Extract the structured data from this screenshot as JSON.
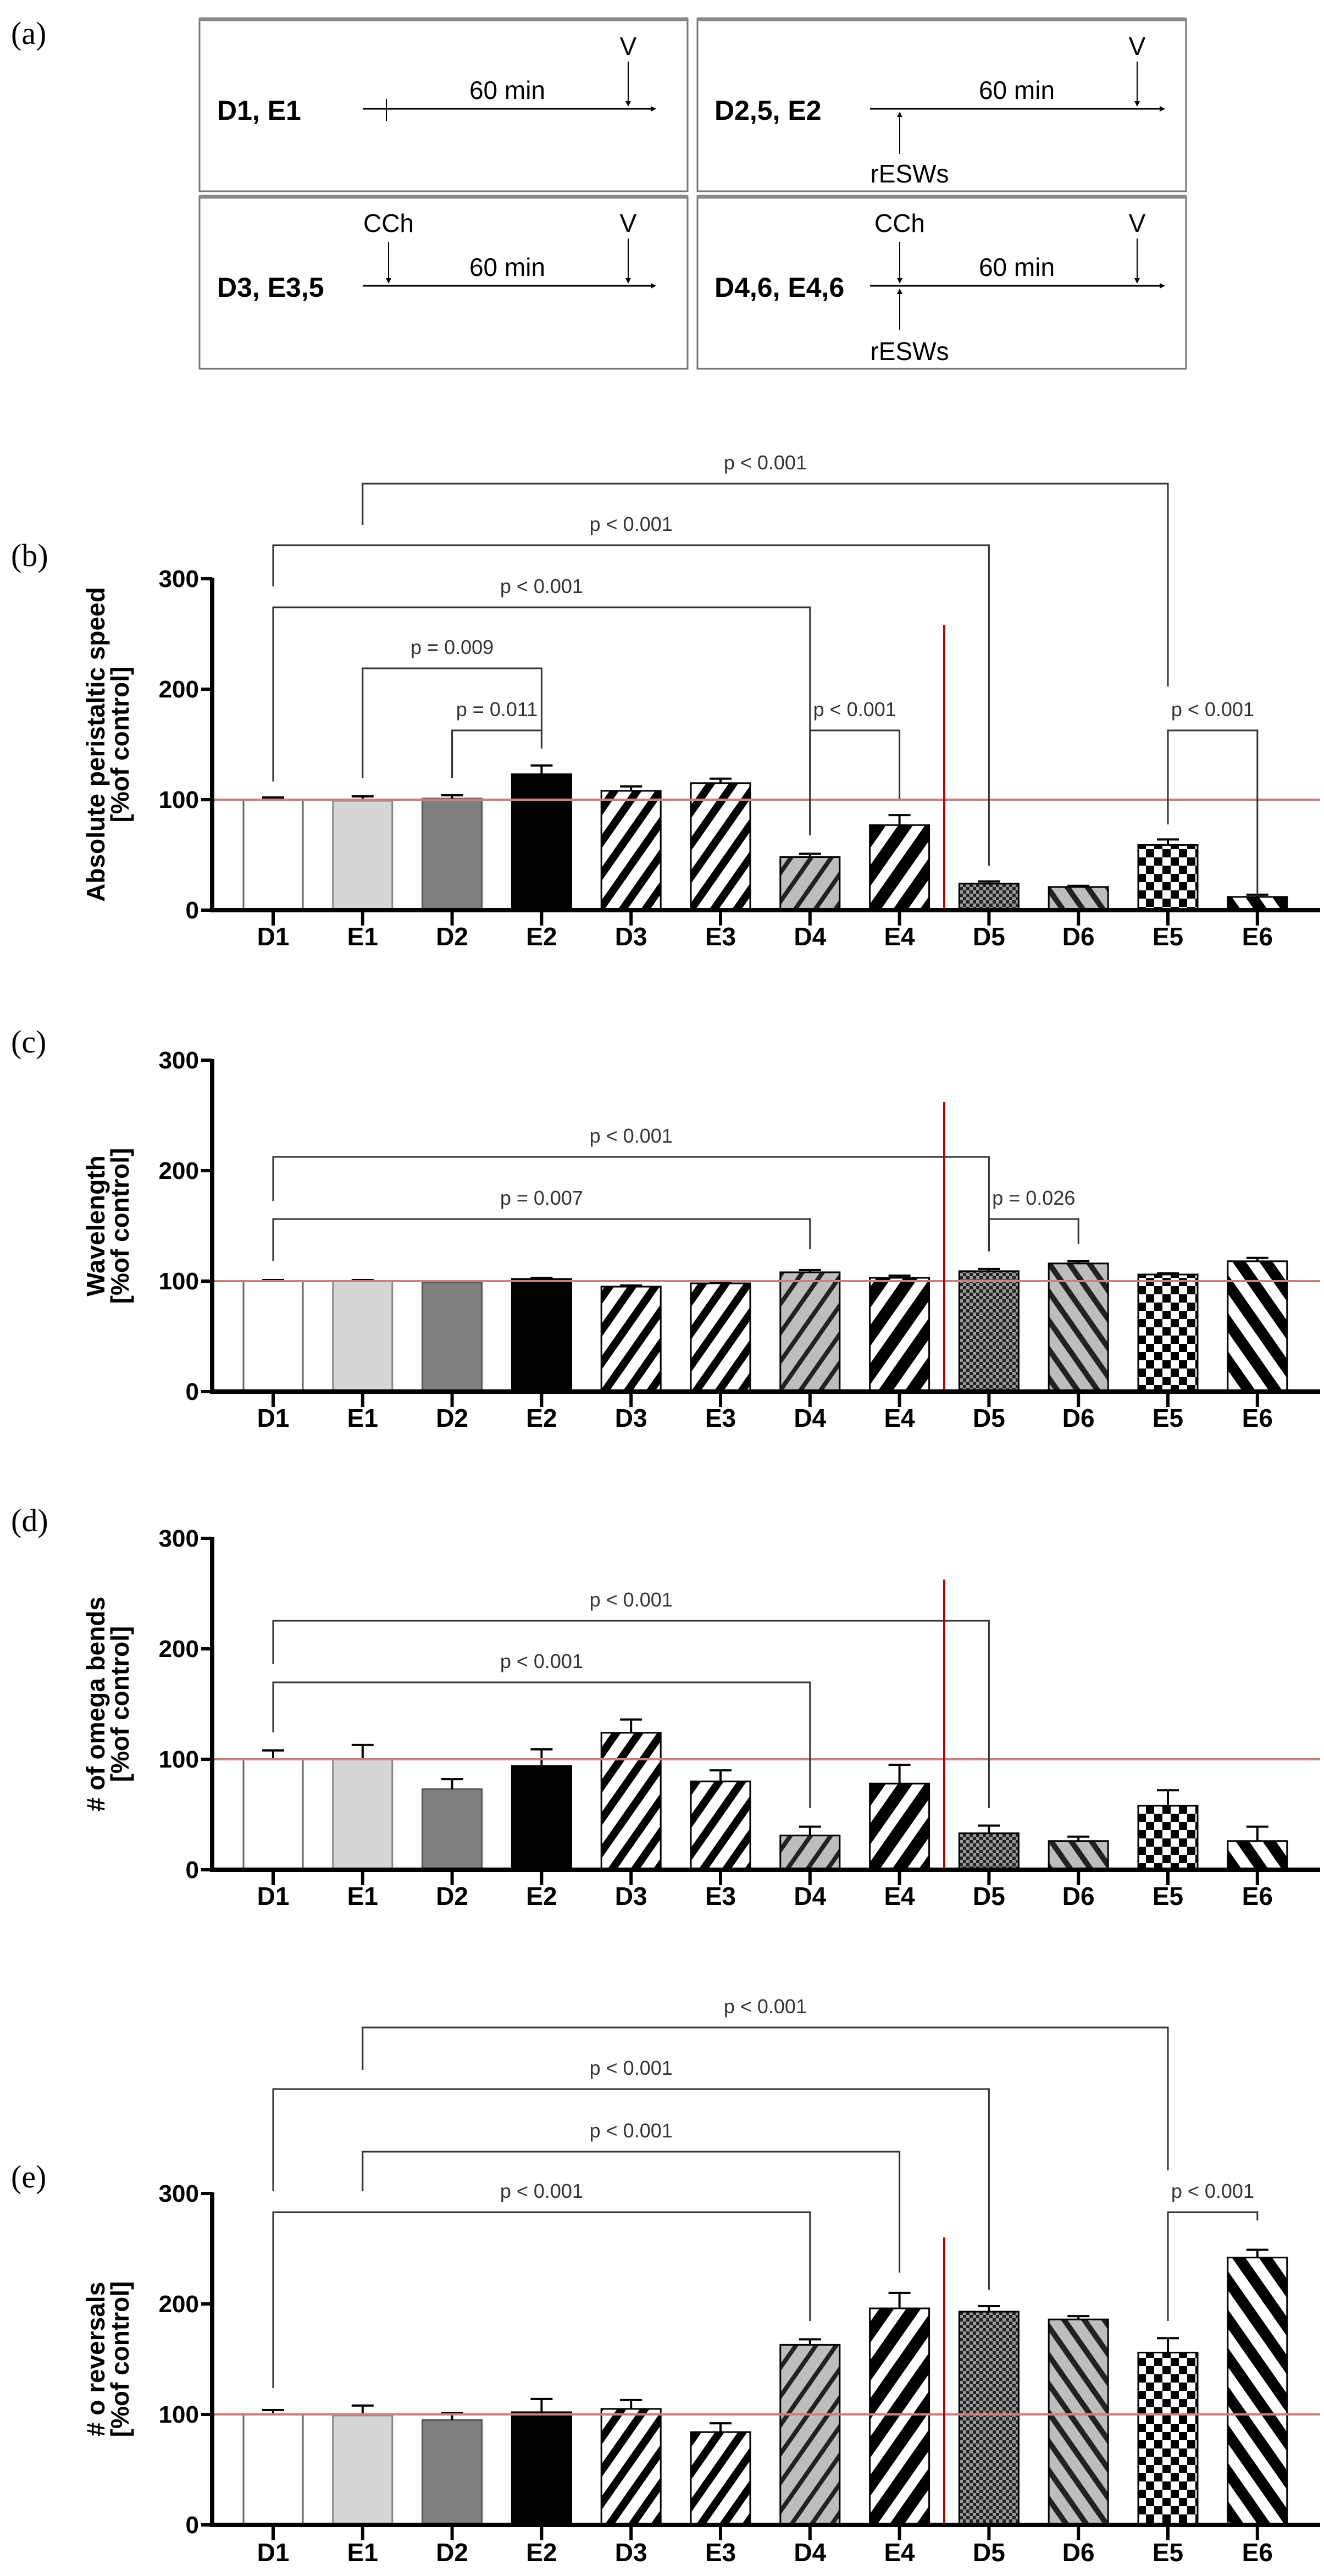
{
  "panel_a": {
    "label": "(a)",
    "boxes": [
      {
        "group": "D1, E1",
        "duration": "60 min",
        "end_marker": "V"
      },
      {
        "group": "D2,5, E2",
        "duration": "60 min",
        "end_marker": "V",
        "below": "rESWs"
      },
      {
        "group": "D3, E3,5",
        "duration": "60 min",
        "end_marker": "V",
        "above": "CCh"
      },
      {
        "group": "D4,6, E4,6",
        "duration": "60 min",
        "end_marker": "V",
        "above": "CCh",
        "below": "rESWs"
      }
    ]
  },
  "colors": {
    "reference_line": "#c98080",
    "divider_line": "#c00000",
    "axis": "#000000"
  },
  "chart_data": [
    {
      "type": "bar",
      "panel_label": "(b)",
      "ylabel": [
        "Absolute peristaltic speed",
        "[%of control]"
      ],
      "categories": [
        "D1",
        "E1",
        "D2",
        "E2",
        "D3",
        "E3",
        "D4",
        "E4",
        "D5",
        "D6",
        "E5",
        "E6"
      ],
      "values": [
        100,
        99,
        101,
        123,
        108,
        115,
        48,
        77,
        24,
        21,
        59,
        12
      ],
      "errors": [
        2,
        4,
        3,
        8,
        4,
        4,
        3,
        9,
        2,
        1,
        5,
        2
      ],
      "ylim": [
        0,
        300
      ],
      "yticks": [
        "0",
        "100",
        "200",
        "300"
      ],
      "reference_value": 100,
      "brackets": [
        {
          "from": "E1",
          "to": "E5",
          "label": "p < 0.001"
        },
        {
          "from": "D1",
          "to": "D5",
          "label": "p < 0.001"
        },
        {
          "from": "D1",
          "to": "D4",
          "label": "p < 0.001"
        },
        {
          "from": "E1",
          "to": "E2",
          "label": "p = 0.009"
        },
        {
          "from": "D2",
          "to": "E2",
          "label": "p = 0.011"
        },
        {
          "from": "D4",
          "to": "E4",
          "label": "p < 0.001"
        },
        {
          "from": "E5",
          "to": "E6",
          "label": "p < 0.001"
        }
      ]
    },
    {
      "type": "bar",
      "panel_label": "(c)",
      "ylabel": [
        "Wavelength",
        "[%of control]"
      ],
      "categories": [
        "D1",
        "E1",
        "D2",
        "E2",
        "D3",
        "E3",
        "D4",
        "E4",
        "D5",
        "D6",
        "E5",
        "E6"
      ],
      "values": [
        100,
        100,
        99,
        102,
        95,
        98,
        108,
        103,
        109,
        116,
        106,
        118
      ],
      "errors": [
        1,
        1,
        1,
        1,
        1,
        1,
        2,
        2,
        2,
        2,
        1,
        3
      ],
      "ylim": [
        0,
        300
      ],
      "yticks": [
        "0",
        "100",
        "200",
        "300"
      ],
      "reference_value": 100,
      "brackets": [
        {
          "from": "D1",
          "to": "D5",
          "label": "p < 0.001"
        },
        {
          "from": "D1",
          "to": "D4",
          "label": "p = 0.007"
        },
        {
          "from": "D5",
          "to": "D6",
          "label": "p = 0.026"
        }
      ]
    },
    {
      "type": "bar",
      "panel_label": "(d)",
      "ylabel": [
        "# of omega bends",
        "[%of control]"
      ],
      "categories": [
        "D1",
        "E1",
        "D2",
        "E2",
        "D3",
        "E3",
        "D4",
        "E4",
        "D5",
        "D6",
        "E5",
        "E6"
      ],
      "values": [
        100,
        100,
        73,
        94,
        124,
        80,
        31,
        78,
        33,
        26,
        58,
        26
      ],
      "errors": [
        8,
        13,
        9,
        15,
        12,
        10,
        8,
        17,
        7,
        4,
        14,
        13
      ],
      "ylim": [
        0,
        300
      ],
      "yticks": [
        "0",
        "100",
        "200",
        "300"
      ],
      "reference_value": 100,
      "brackets": [
        {
          "from": "D1",
          "to": "D5",
          "label": "p < 0.001"
        },
        {
          "from": "D1",
          "to": "D4",
          "label": "p < 0.001"
        }
      ]
    },
    {
      "type": "bar",
      "panel_label": "(e)",
      "ylabel": [
        "# o reversals",
        "[%of control]"
      ],
      "categories": [
        "D1",
        "E1",
        "D2",
        "E2",
        "D3",
        "E3",
        "D4",
        "E4",
        "D5",
        "D6",
        "E5",
        "E6"
      ],
      "values": [
        100,
        99,
        95,
        102,
        105,
        84,
        163,
        196,
        193,
        186,
        156,
        242
      ],
      "errors": [
        4,
        9,
        6,
        12,
        8,
        8,
        5,
        14,
        5,
        3,
        13,
        7
      ],
      "ylim": [
        0,
        300
      ],
      "yticks": [
        "0",
        "100",
        "200",
        "300"
      ],
      "reference_value": 100,
      "brackets": [
        {
          "from": "E1",
          "to": "E5",
          "label": "p < 0.001"
        },
        {
          "from": "D1",
          "to": "D5",
          "label": "p < 0.001"
        },
        {
          "from": "E1",
          "to": "E4",
          "label": "p < 0.001"
        },
        {
          "from": "D1",
          "to": "D4",
          "label": "p < 0.001"
        },
        {
          "from": "E5",
          "to": "E6",
          "label": "p < 0.001"
        }
      ]
    }
  ]
}
